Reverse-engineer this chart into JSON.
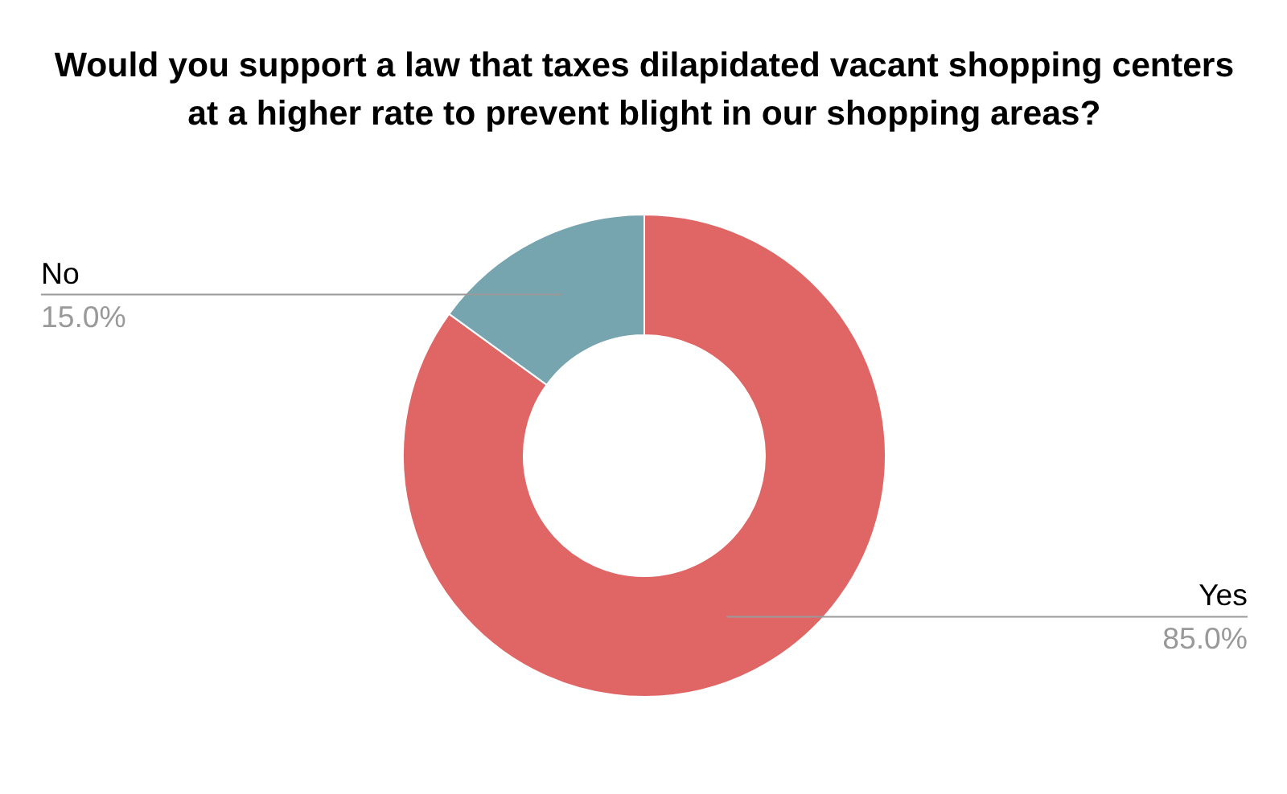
{
  "chart_data": {
    "type": "donut",
    "title": "Would you support a law that taxes dilapidated vacant shopping centers at a higher rate to prevent blight in our shopping areas?",
    "categories": [
      "Yes",
      "No"
    ],
    "values": [
      85.0,
      15.0
    ],
    "colors": [
      "#e06666",
      "#76a5af"
    ],
    "value_labels": [
      "85.0%",
      "15.0%"
    ]
  }
}
